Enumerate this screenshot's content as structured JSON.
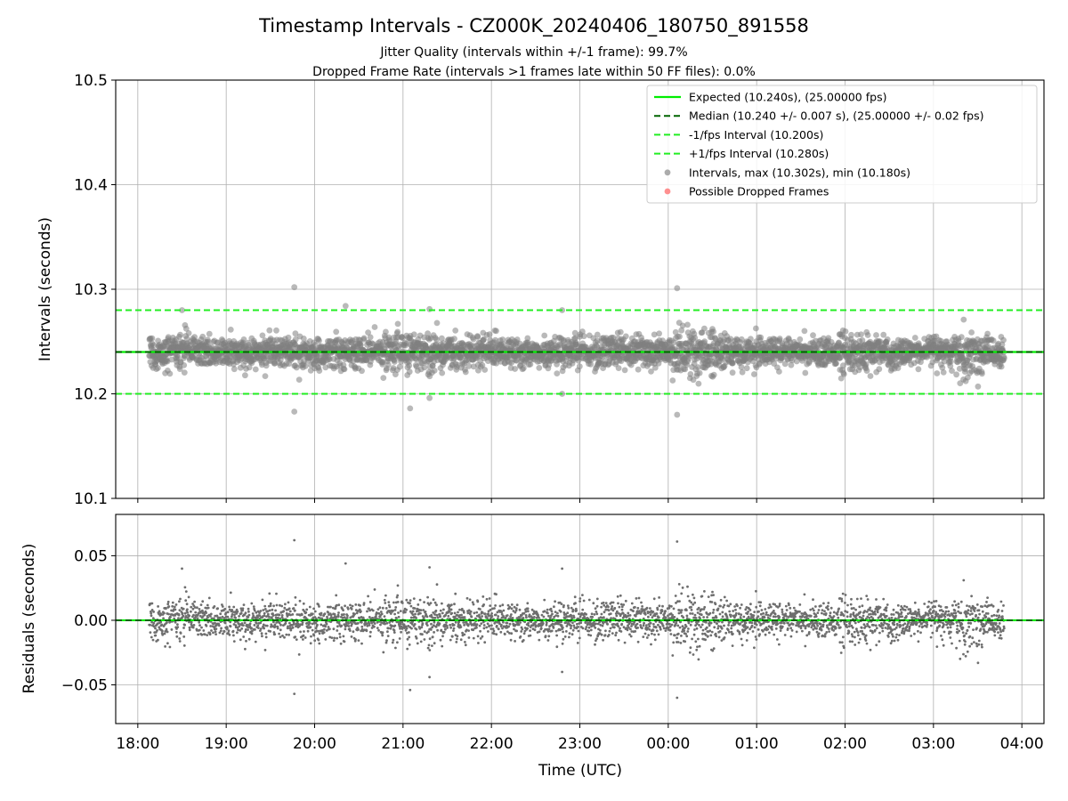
{
  "chart_data": {
    "type": "scatter",
    "title": "Timestamp Intervals - CZ000K_20240406_180750_891558",
    "subtitles": [
      "Jitter Quality (intervals within +/-1 frame): 99.7%",
      "Dropped Frame Rate (intervals >1 frames late within 50 FF files): 0.0%"
    ],
    "x": {
      "label": "Time (UTC)",
      "min_hours": -0.25,
      "max_hours": 10.25,
      "ticks": [
        {
          "h": 0,
          "label": "18:00"
        },
        {
          "h": 1,
          "label": "19:00"
        },
        {
          "h": 2,
          "label": "20:00"
        },
        {
          "h": 3,
          "label": "21:00"
        },
        {
          "h": 4,
          "label": "22:00"
        },
        {
          "h": 5,
          "label": "23:00"
        },
        {
          "h": 6,
          "label": "00:00"
        },
        {
          "h": 7,
          "label": "01:00"
        },
        {
          "h": 8,
          "label": "02:00"
        },
        {
          "h": 9,
          "label": "03:00"
        },
        {
          "h": 10,
          "label": "04:00"
        }
      ],
      "data_start_hours": 0.13,
      "data_end_hours": 9.8
    },
    "top_panel": {
      "ylabel": "Intervals (seconds)",
      "ylim": [
        10.1,
        10.5
      ],
      "yticks": [
        10.1,
        10.2,
        10.3,
        10.4,
        10.5
      ],
      "ytick_labels": [
        "10.1",
        "10.2",
        "10.3",
        "10.4",
        "10.5"
      ],
      "expected": 10.24,
      "median": 10.24,
      "lower": 10.2,
      "upper": 10.28
    },
    "bottom_panel": {
      "ylabel": "Residuals (seconds)",
      "ylim": [
        -0.08,
        0.082
      ],
      "yticks": [
        -0.05,
        0.0,
        0.05
      ],
      "ytick_labels": [
        "−0.05",
        "0.00",
        "0.05"
      ]
    },
    "legend": {
      "placement": "top-right",
      "entries": [
        {
          "label": "Expected (10.240s), (25.00000 fps)",
          "style": "solid",
          "color": "#00ee00"
        },
        {
          "label": "Median (10.240 +/- 0.007 s), (25.00000 +/- 0.02 fps)",
          "style": "dashed",
          "color": "#006400"
        },
        {
          "label": "-1/fps Interval (10.200s)",
          "style": "dashed",
          "color": "#22ee22"
        },
        {
          "label": "+1/fps Interval (10.280s)",
          "style": "dashed",
          "color": "#22ee22"
        },
        {
          "label": "Intervals, max (10.302s), min (10.180s)",
          "style": "marker",
          "color": "#808080"
        },
        {
          "label": "Possible Dropped Frames",
          "style": "marker",
          "color": "#ff5555"
        }
      ]
    },
    "series": [
      {
        "name": "Intervals, max (10.302s), min (10.180s)",
        "count": 3400,
        "center": 10.24,
        "outliers": [
          {
            "h": 1.77,
            "y": 10.302
          },
          {
            "h": 1.77,
            "y": 10.183
          },
          {
            "h": 3.08,
            "y": 10.186
          },
          {
            "h": 6.1,
            "y": 10.301
          },
          {
            "h": 6.1,
            "y": 10.18
          },
          {
            "h": 2.35,
            "y": 10.284
          },
          {
            "h": 0.5,
            "y": 10.28
          },
          {
            "h": 3.3,
            "y": 10.281
          },
          {
            "h": 4.8,
            "y": 10.2
          },
          {
            "h": 4.8,
            "y": 10.28
          },
          {
            "h": 3.3,
            "y": 10.196
          }
        ]
      },
      {
        "name": "Possible Dropped Frames",
        "count": 0
      }
    ],
    "grid": true,
    "colors": {
      "expected": "#00ee00",
      "median": "#006400",
      "bounds": "#22ee22",
      "points": "#808080",
      "dropped": "#ff5555"
    }
  }
}
